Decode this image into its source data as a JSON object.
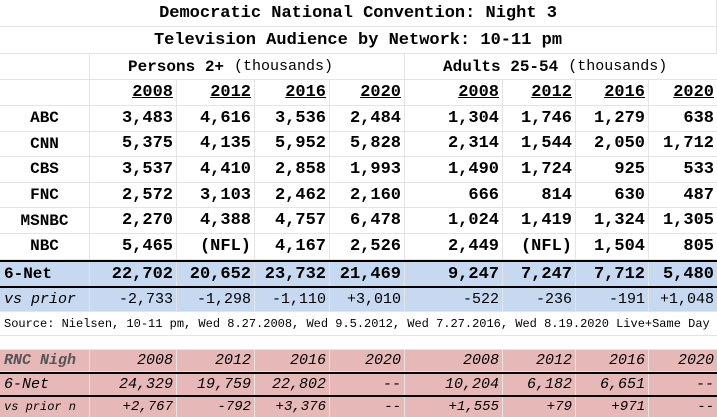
{
  "title1": "Democratic National Convention: Night 3",
  "title2": "Television Audience by Network: 10-11 pm",
  "group_persons": "Persons 2+",
  "group_adults": "Adults 25-54",
  "thousands": "(thousands)",
  "years": [
    "2008",
    "2012",
    "2016",
    "2020"
  ],
  "rows": [
    {
      "net": "ABC",
      "p": [
        "3,483",
        "4,616",
        "3,536",
        "2,484"
      ],
      "a": [
        "1,304",
        "1,746",
        "1,279",
        "638"
      ]
    },
    {
      "net": "CNN",
      "p": [
        "5,375",
        "4,135",
        "5,952",
        "5,828"
      ],
      "a": [
        "2,314",
        "1,544",
        "2,050",
        "1,712"
      ]
    },
    {
      "net": "CBS",
      "p": [
        "3,537",
        "4,410",
        "2,858",
        "1,993"
      ],
      "a": [
        "1,490",
        "1,724",
        "925",
        "533"
      ]
    },
    {
      "net": "FNC",
      "p": [
        "2,572",
        "3,103",
        "2,462",
        "2,160"
      ],
      "a": [
        "666",
        "814",
        "630",
        "487"
      ]
    },
    {
      "net": "MSNBC",
      "p": [
        "2,270",
        "4,388",
        "4,757",
        "6,478"
      ],
      "a": [
        "1,024",
        "1,419",
        "1,324",
        "1,305"
      ]
    },
    {
      "net": "NBC",
      "p": [
        "5,465",
        "(NFL)",
        "4,167",
        "2,526"
      ],
      "a": [
        "2,449",
        "(NFL)",
        "1,504",
        "805"
      ]
    }
  ],
  "total": {
    "label": "6-Net",
    "p": [
      "22,702",
      "20,652",
      "23,732",
      "21,469"
    ],
    "a": [
      "9,247",
      "7,247",
      "7,712",
      "5,480"
    ]
  },
  "prior": {
    "label": "vs prior",
    "p": [
      "-2,733",
      "-1,298",
      "-1,110",
      "+3,010"
    ],
    "a": [
      "-522",
      "-236",
      "-191",
      "+1,048"
    ]
  },
  "source": "Source: Nielsen, 10-11 pm, Wed 8.27.2008, Wed 9.5.2012, Wed 7.27.2016, Wed 8.19.2020 Live+Same Day",
  "rnc": {
    "header_label": "RNC Nigh",
    "years": [
      "2008",
      "2012",
      "2016",
      "2020",
      "2008",
      "2012",
      "2016",
      "2020"
    ],
    "net_label": "6-Net",
    "net_values": [
      "24,329",
      "19,759",
      "22,802",
      "--",
      "10,204",
      "6,182",
      "6,651",
      "--"
    ],
    "prior_label": "vs prior n",
    "prior_values": [
      "+2,767",
      "-792",
      "+3,376",
      "--",
      "+1,555",
      "+79",
      "+971",
      "--"
    ]
  },
  "colors": {
    "blue_band": "#c6d9f0",
    "pink_band": "#e6b8b7"
  }
}
